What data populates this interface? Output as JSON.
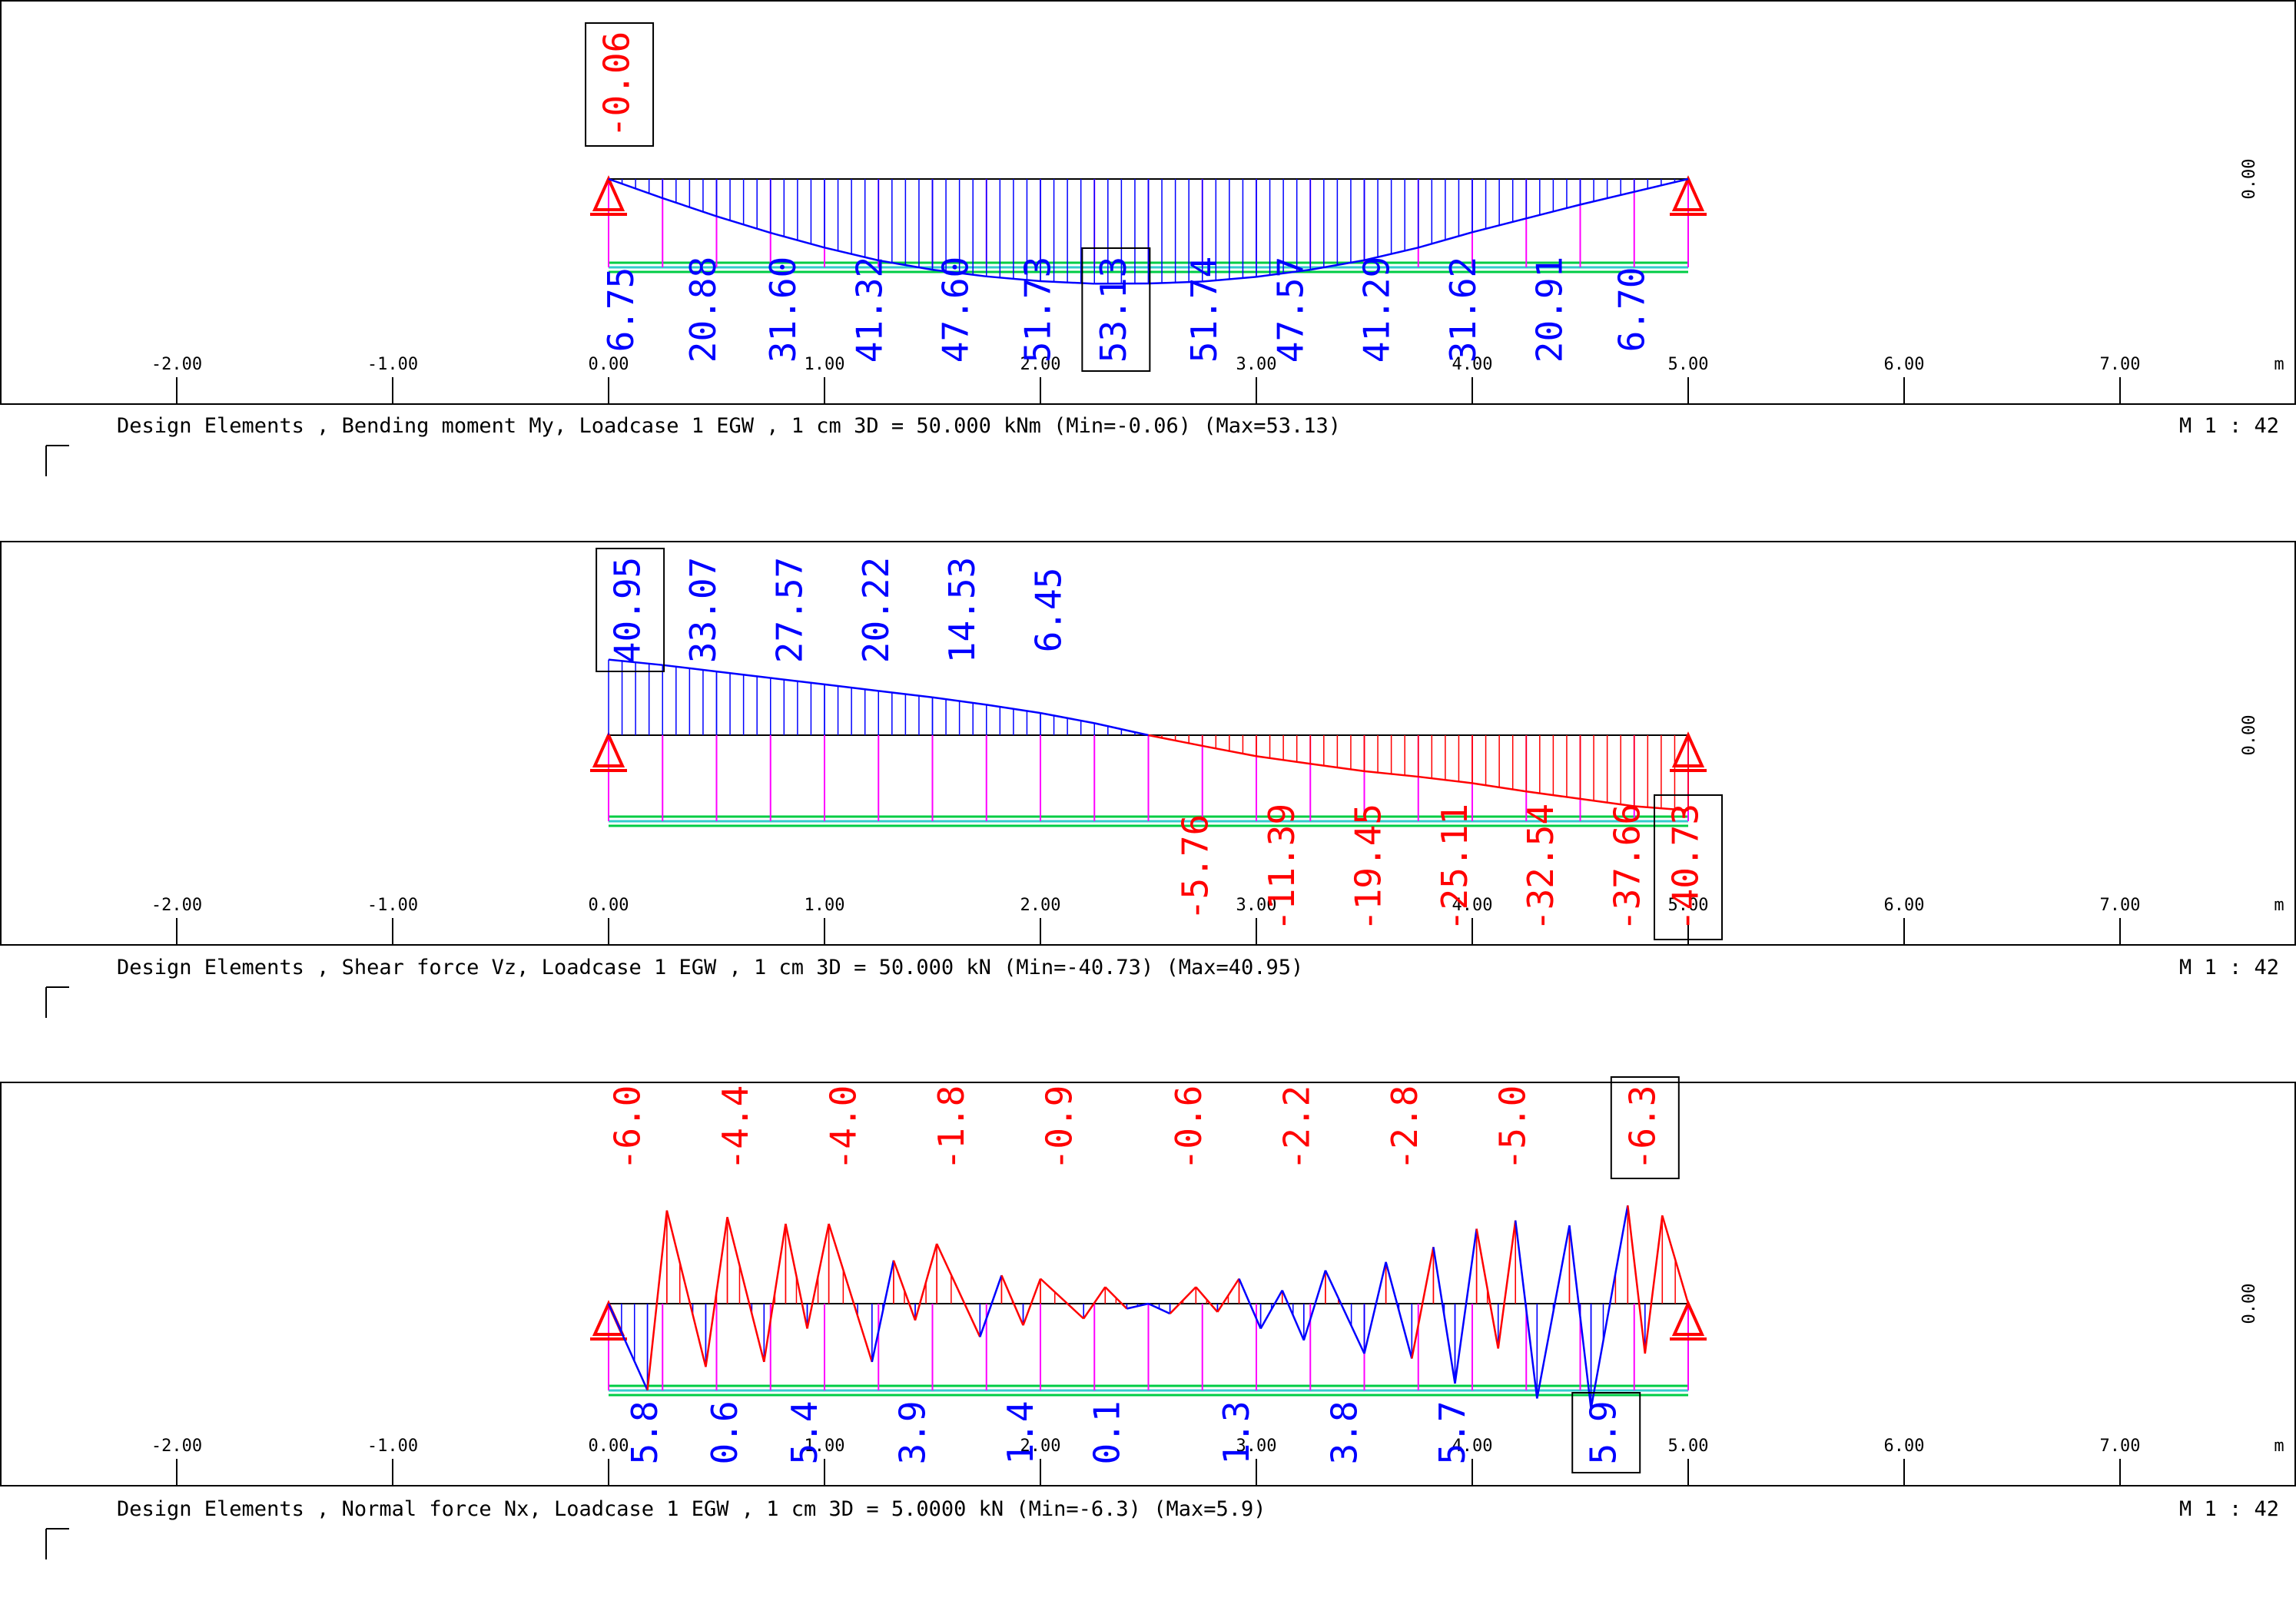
{
  "colors": {
    "positive": "#0000ff",
    "negative": "#ff0000",
    "member": "#00cc44",
    "member_inner": "#33cccc",
    "nodes": "#ff00ff",
    "frame": "#000000"
  },
  "chart_data": [
    {
      "type": "line",
      "title": "Design Elements , Bending moment My, Loadcase 1  EGW   , 1 cm 3D =  50.000 kNm (Min=-0.06) (Max=53.13)",
      "scale_label": "M 1 : 42",
      "axis_unit": "m",
      "zero_label": "0.00",
      "xlim": [
        -2.8,
        7.85
      ],
      "ylim": [
        -61.5,
        136
      ],
      "x_ticks": [
        -2,
        -1,
        0,
        1,
        2,
        3,
        4,
        5,
        6,
        7
      ],
      "x_tick_labels": [
        "-2.00",
        "-1.00",
        "0.00",
        "1.00",
        "2.00",
        "3.00",
        "4.00",
        "5.00",
        "6.00",
        "7.00"
      ],
      "series": [
        {
          "x": [
            0,
            0.25,
            0.5,
            0.75,
            1,
            1.25,
            1.5,
            1.75,
            2,
            2.25,
            2.5,
            2.75,
            3,
            3.25,
            3.5,
            3.75,
            4,
            4.25,
            4.5,
            4.75,
            5
          ],
          "values": [
            0,
            9.7,
            18.9,
            27.3,
            34.8,
            41.3,
            46.0,
            49.4,
            51.8,
            53.1,
            53.0,
            52.0,
            49.6,
            46.0,
            41.2,
            34.8,
            27.0,
            20.0,
            13.0,
            6.5,
            0
          ]
        }
      ],
      "annotations": [
        {
          "x": 0.05,
          "value": "-0.06",
          "color": "negative",
          "boxed": true
        },
        {
          "x": 0.07,
          "value": "6.75",
          "color": "positive"
        },
        {
          "x": 0.45,
          "value": "20.88",
          "color": "positive"
        },
        {
          "x": 0.82,
          "value": "31.60",
          "color": "positive"
        },
        {
          "x": 1.22,
          "value": "41.32",
          "color": "positive"
        },
        {
          "x": 1.62,
          "value": "47.60",
          "color": "positive"
        },
        {
          "x": 2.0,
          "value": "51.73",
          "color": "positive"
        },
        {
          "x": 2.35,
          "value": "53.13",
          "color": "positive",
          "boxed": true
        },
        {
          "x": 2.77,
          "value": "51.74",
          "color": "positive"
        },
        {
          "x": 3.17,
          "value": "47.57",
          "color": "positive"
        },
        {
          "x": 3.57,
          "value": "41.29",
          "color": "positive"
        },
        {
          "x": 3.97,
          "value": "31.62",
          "color": "positive"
        },
        {
          "x": 4.37,
          "value": "20.91",
          "color": "positive"
        },
        {
          "x": 4.75,
          "value": "6.70",
          "color": "positive"
        }
      ]
    },
    {
      "type": "line",
      "title": "Design Elements , Shear force Vz, Loadcase 1  EGW   , 1 cm 3D =  50.000 kN (Min=-40.73) (Max=40.95)",
      "scale_label": "M 1 : 42",
      "axis_unit": "m",
      "zero_label": "0.00",
      "xlim": [
        -2.8,
        7.85
      ],
      "ylim": [
        -111,
        100
      ],
      "x_ticks": [
        -2,
        -1,
        0,
        1,
        2,
        3,
        4,
        5,
        6,
        7
      ],
      "x_tick_labels": [
        "-2.00",
        "-1.00",
        "0.00",
        "1.00",
        "2.00",
        "3.00",
        "4.00",
        "5.00",
        "6.00",
        "7.00"
      ],
      "series": [
        {
          "x": [
            0,
            0.25,
            0.5,
            0.75,
            1,
            1.25,
            1.5,
            1.75,
            2,
            2.25,
            2.5,
            2.75,
            3,
            3.25,
            3.5,
            3.75,
            4,
            4.25,
            4.5,
            4.75,
            5
          ],
          "values": [
            40.95,
            38.0,
            34.5,
            31.0,
            27.5,
            24.0,
            20.5,
            16.5,
            12.0,
            6.5,
            0,
            -5.8,
            -11.4,
            -15.5,
            -19.5,
            -22.5,
            -26.0,
            -30.5,
            -34.5,
            -38.5,
            -40.73
          ]
        }
      ],
      "annotations": [
        {
          "x": 0.1,
          "value": "40.95",
          "color": "positive",
          "boxed": true
        },
        {
          "x": 0.45,
          "value": "33.07",
          "color": "positive"
        },
        {
          "x": 0.85,
          "value": "27.57",
          "color": "positive"
        },
        {
          "x": 1.25,
          "value": "20.22",
          "color": "positive"
        },
        {
          "x": 1.65,
          "value": "14.53",
          "color": "positive"
        },
        {
          "x": 2.05,
          "value": "6.45",
          "color": "positive"
        },
        {
          "x": 2.73,
          "value": "-5.76",
          "color": "negative"
        },
        {
          "x": 3.13,
          "value": "-11.39",
          "color": "negative"
        },
        {
          "x": 3.53,
          "value": "-19.45",
          "color": "negative"
        },
        {
          "x": 3.93,
          "value": "-25.11",
          "color": "negative"
        },
        {
          "x": 4.33,
          "value": "-32.54",
          "color": "negative"
        },
        {
          "x": 4.73,
          "value": "-37.66",
          "color": "negative"
        },
        {
          "x": 5.0,
          "value": "-40.73",
          "color": "negative",
          "boxed": true
        }
      ]
    },
    {
      "type": "line",
      "title": "Design Elements , Normal force Nx, Loadcase 1  EGW   , 1 cm 3D =  5.0000 kN (Min=-6.3) (Max=5.9)",
      "scale_label": "M 1 : 42",
      "axis_unit": "m",
      "zero_label": "0.00",
      "xlim": [
        -2.8,
        7.85
      ],
      "ylim": [
        -10.6,
        12.8
      ],
      "x_ticks": [
        -2,
        -1,
        0,
        1,
        2,
        3,
        4,
        5,
        6,
        7
      ],
      "x_tick_labels": [
        "-2.00",
        "-1.00",
        "0.00",
        "1.00",
        "2.00",
        "3.00",
        "4.00",
        "5.00",
        "6.00",
        "7.00"
      ],
      "series": [
        {
          "x": [
            0,
            0.18,
            0.27,
            0.45,
            0.55,
            0.72,
            0.82,
            0.92,
            1.02,
            1.22,
            1.32,
            1.42,
            1.52,
            1.72,
            1.82,
            1.92,
            2.0,
            2.2,
            2.3,
            2.4,
            2.5,
            2.6,
            2.72,
            2.82,
            2.92,
            3.02,
            3.12,
            3.22,
            3.32,
            3.5,
            3.6,
            3.72,
            3.82,
            3.92,
            4.02,
            4.12,
            4.2,
            4.3,
            4.45,
            4.55,
            4.72,
            4.8,
            4.88,
            5.0
          ],
          "values": [
            0,
            -5.2,
            5.6,
            -3.8,
            5.2,
            -3.5,
            4.8,
            -1.5,
            4.8,
            -3.5,
            2.6,
            -1.0,
            3.6,
            -2.0,
            1.7,
            -1.3,
            1.5,
            -0.9,
            1.0,
            -0.3,
            0,
            -0.6,
            1.0,
            -0.5,
            1.5,
            -1.5,
            0.8,
            -2.2,
            2.0,
            -3.0,
            2.5,
            -3.3,
            3.4,
            -4.8,
            4.5,
            -2.7,
            5.0,
            -5.7,
            4.7,
            -6.3,
            5.9,
            -3.0,
            5.3,
            0
          ]
        }
      ],
      "annotations": [
        {
          "x": 0.1,
          "value": "-6.0",
          "color": "negative"
        },
        {
          "x": 0.6,
          "value": "-4.4",
          "color": "negative"
        },
        {
          "x": 1.1,
          "value": "-4.0",
          "color": "negative"
        },
        {
          "x": 1.6,
          "value": "-1.8",
          "color": "negative"
        },
        {
          "x": 2.1,
          "value": "-0.9",
          "color": "negative"
        },
        {
          "x": 2.7,
          "value": "-0.6",
          "color": "negative"
        },
        {
          "x": 3.2,
          "value": "-2.2",
          "color": "negative"
        },
        {
          "x": 3.7,
          "value": "-2.8",
          "color": "negative"
        },
        {
          "x": 4.2,
          "value": "-5.0",
          "color": "negative"
        },
        {
          "x": 4.8,
          "value": "-6.3",
          "color": "negative",
          "boxed": true
        },
        {
          "x": 0.18,
          "value": "5.8",
          "color": "positive"
        },
        {
          "x": 0.55,
          "value": "0.6",
          "color": "positive"
        },
        {
          "x": 0.92,
          "value": "5.4",
          "color": "positive"
        },
        {
          "x": 1.42,
          "value": "3.9",
          "color": "positive"
        },
        {
          "x": 1.92,
          "value": "1.4",
          "color": "positive"
        },
        {
          "x": 2.32,
          "value": "0.1",
          "color": "positive"
        },
        {
          "x": 2.92,
          "value": "1.3",
          "color": "positive"
        },
        {
          "x": 3.42,
          "value": "3.8",
          "color": "positive"
        },
        {
          "x": 3.92,
          "value": "5.7",
          "color": "positive"
        },
        {
          "x": 4.62,
          "value": "5.9",
          "color": "positive",
          "boxed": true
        }
      ]
    }
  ]
}
